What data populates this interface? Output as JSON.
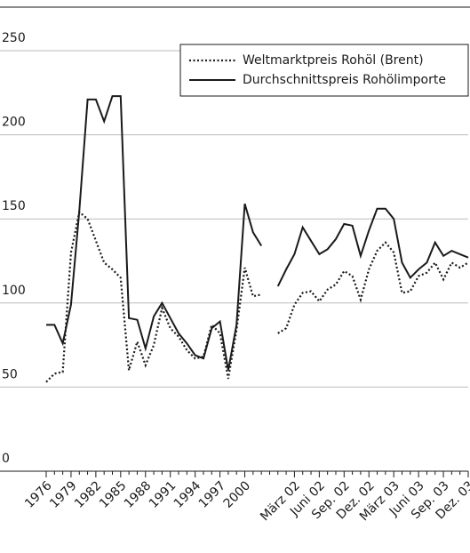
{
  "chart_data": {
    "type": "line",
    "categories": [
      "1976",
      null,
      null,
      "1979",
      null,
      null,
      "1982",
      null,
      null,
      "1985",
      null,
      null,
      "1988",
      null,
      null,
      "1991",
      null,
      null,
      "1994",
      null,
      null,
      "1997",
      null,
      null,
      "2000",
      null,
      null,
      null,
      null,
      null,
      "März 02",
      null,
      null,
      "Juni 02",
      null,
      null,
      "Sep. 02",
      null,
      null,
      "Dez. 02",
      null,
      null,
      "März 03",
      null,
      null,
      "Juni 03",
      null,
      null,
      "Sep. 03",
      null,
      null,
      "Dez. 03"
    ],
    "series": [
      {
        "name": "Weltmarktpreis Rohöl (Brent)",
        "color": "#1a1a1a",
        "dash": "dotted",
        "values": [
          53,
          58,
          59,
          130,
          154,
          150,
          137,
          124,
          120,
          115,
          60,
          77,
          63,
          75,
          97,
          85,
          80,
          72,
          67,
          68,
          87,
          82,
          55,
          84,
          121,
          104,
          105,
          null,
          82,
          85,
          99,
          106,
          107,
          101,
          108,
          111,
          119,
          116,
          102,
          120,
          131,
          136,
          130,
          106,
          107,
          116,
          118,
          124,
          114,
          124,
          121,
          124
        ]
      },
      {
        "name": "Durchschnittspreis Rohölimporte",
        "color": "#1a1a1a",
        "dash": "solid",
        "values": [
          87,
          87,
          76,
          99,
          155,
          221,
          221,
          208,
          223,
          223,
          91,
          90,
          73,
          92,
          100,
          91,
          82,
          76,
          69,
          67,
          85,
          89,
          60,
          87,
          159,
          142,
          134,
          null,
          110,
          120,
          129,
          145,
          137,
          129,
          132,
          138,
          147,
          146,
          128,
          143,
          156,
          156,
          150,
          124,
          115,
          120,
          124,
          136,
          128,
          131,
          129,
          127
        ]
      }
    ],
    "ylim": [
      0,
      250
    ],
    "yticks": [
      0,
      50,
      100,
      150,
      200,
      250
    ],
    "grid": true,
    "legend": "top-right"
  }
}
